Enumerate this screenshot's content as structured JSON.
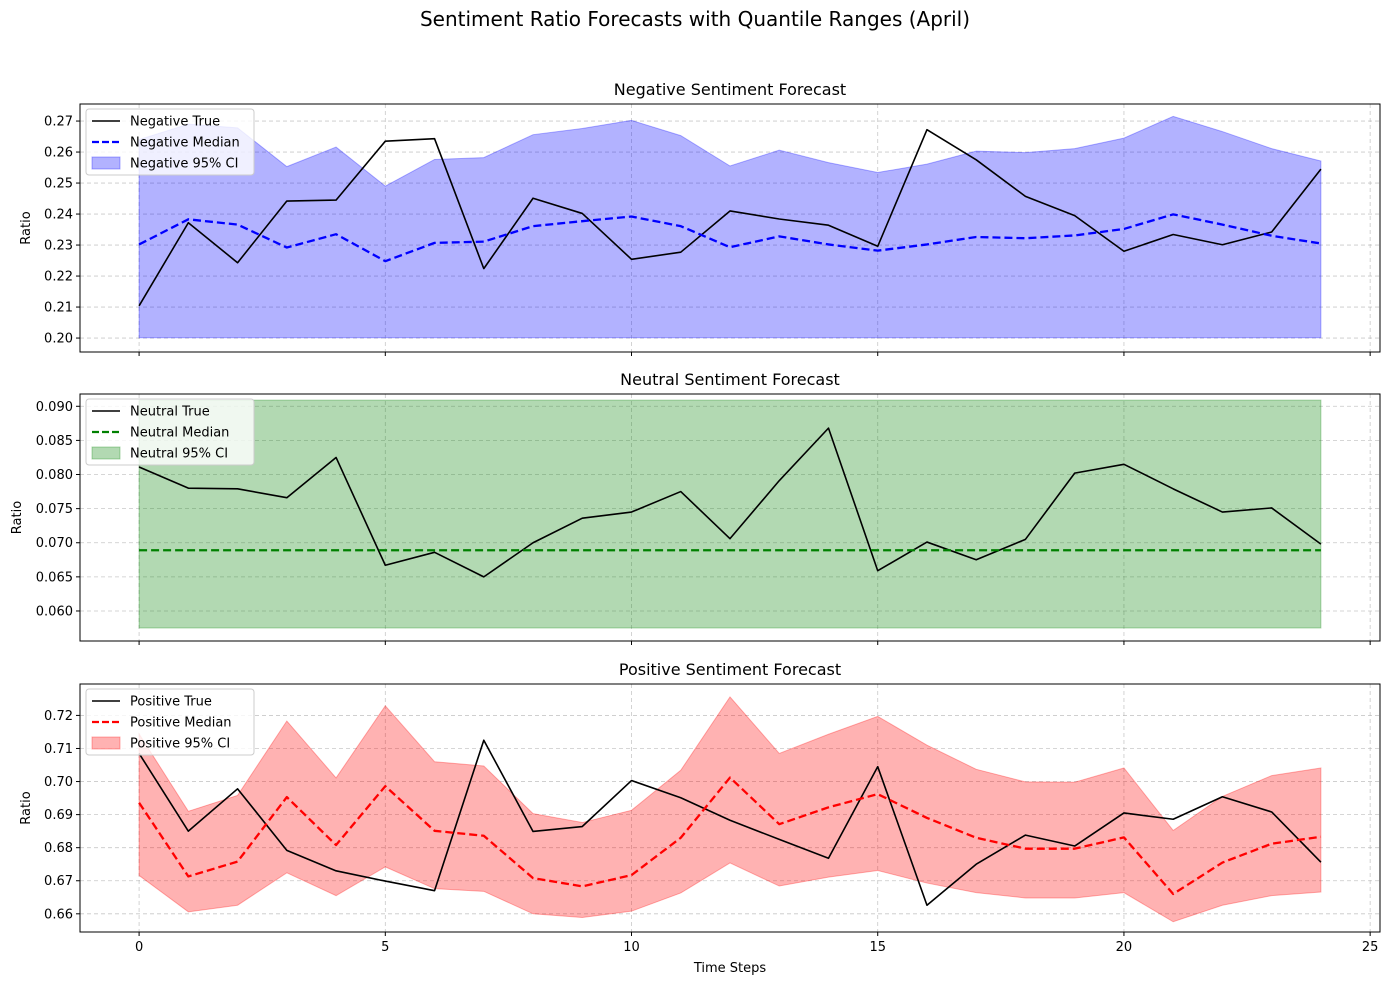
{
  "figure": {
    "title": "Sentiment Ratio Forecasts with Quantile Ranges (April)"
  },
  "chart_data": [
    {
      "type": "line",
      "title": "Negative Sentiment Forecast",
      "xlabel": "",
      "ylabel": "Ratio",
      "xlim": [
        -1.2,
        25.2
      ],
      "ylim": [
        0.1955,
        0.2755
      ],
      "yticks": [
        0.2,
        0.21,
        0.22,
        0.23,
        0.24,
        0.25,
        0.26,
        0.27
      ],
      "ytick_labels": [
        "0.20",
        "0.21",
        "0.22",
        "0.23",
        "0.24",
        "0.25",
        "0.26",
        "0.27"
      ],
      "xticks": [
        0,
        5,
        10,
        15,
        20,
        25
      ],
      "xtick_labels": [],
      "grid": true,
      "legend_position": "top-left",
      "x": [
        0,
        1,
        2,
        3,
        4,
        5,
        6,
        7,
        8,
        9,
        10,
        11,
        12,
        13,
        14,
        15,
        16,
        17,
        18,
        19,
        20,
        21,
        22,
        23,
        24
      ],
      "series": [
        {
          "name": "Negative True",
          "kind": "line",
          "color": "#000000",
          "dashed": false,
          "values": [
            0.2104,
            0.2372,
            0.2243,
            0.2442,
            0.2445,
            0.2635,
            0.2643,
            0.2224,
            0.2451,
            0.2402,
            0.2254,
            0.2277,
            0.241,
            0.2384,
            0.2364,
            0.2296,
            0.2672,
            0.2575,
            0.2457,
            0.2395,
            0.228,
            0.2334,
            0.2301,
            0.2342,
            0.2545
          ]
        },
        {
          "name": "Negative Median",
          "kind": "line",
          "color": "#0000ff",
          "dashed": true,
          "values": [
            0.2302,
            0.2383,
            0.2366,
            0.2292,
            0.2335,
            0.2248,
            0.2307,
            0.2311,
            0.2361,
            0.2377,
            0.2392,
            0.2361,
            0.2293,
            0.2328,
            0.2302,
            0.2282,
            0.2302,
            0.2326,
            0.2322,
            0.2331,
            0.2352,
            0.2399,
            0.2366,
            0.233,
            0.2305
          ]
        },
        {
          "name": "Negative 95% CI",
          "kind": "band",
          "color": "#0000ff",
          "lower": [
            0.2001,
            0.2001,
            0.2001,
            0.2001,
            0.2001,
            0.2001,
            0.2001,
            0.2001,
            0.2001,
            0.2001,
            0.2001,
            0.2001,
            0.2001,
            0.2001,
            0.2001,
            0.2001,
            0.2001,
            0.2001,
            0.2001,
            0.2001,
            0.2001,
            0.2001,
            0.2001,
            0.2001,
            0.2001
          ],
          "upper": [
            0.264,
            0.269,
            0.2678,
            0.2553,
            0.2616,
            0.249,
            0.2576,
            0.2582,
            0.2656,
            0.2676,
            0.2702,
            0.2653,
            0.2555,
            0.2606,
            0.2566,
            0.2534,
            0.2561,
            0.2603,
            0.2598,
            0.2611,
            0.2645,
            0.2715,
            0.2666,
            0.2611,
            0.2571
          ]
        }
      ]
    },
    {
      "type": "line",
      "title": "Neutral Sentiment Forecast",
      "xlabel": "",
      "ylabel": "Ratio",
      "xlim": [
        -1.2,
        25.2
      ],
      "ylim": [
        0.0556,
        0.0918
      ],
      "yticks": [
        0.06,
        0.065,
        0.07,
        0.075,
        0.08,
        0.085,
        0.09
      ],
      "ytick_labels": [
        "0.060",
        "0.065",
        "0.070",
        "0.075",
        "0.080",
        "0.085",
        "0.090"
      ],
      "xticks": [
        0,
        5,
        10,
        15,
        20,
        25
      ],
      "xtick_labels": [],
      "grid": true,
      "legend_position": "top-left",
      "x": [
        0,
        1,
        2,
        3,
        4,
        5,
        6,
        7,
        8,
        9,
        10,
        11,
        12,
        13,
        14,
        15,
        16,
        17,
        18,
        19,
        20,
        21,
        22,
        23,
        24
      ],
      "series": [
        {
          "name": "Neutral True",
          "kind": "line",
          "color": "#000000",
          "dashed": false,
          "values": [
            0.0811,
            0.078,
            0.0779,
            0.0766,
            0.0825,
            0.0667,
            0.0686,
            0.065,
            0.07,
            0.0736,
            0.0745,
            0.0775,
            0.0706,
            0.0791,
            0.0868,
            0.0659,
            0.0701,
            0.0675,
            0.0705,
            0.0802,
            0.0815,
            0.0779,
            0.0745,
            0.0751,
            0.0698
          ]
        },
        {
          "name": "Neutral Median",
          "kind": "line",
          "color": "#008000",
          "dashed": true,
          "values": [
            0.0689,
            0.0689,
            0.0689,
            0.0689,
            0.0689,
            0.0689,
            0.0689,
            0.0689,
            0.0689,
            0.0689,
            0.0689,
            0.0689,
            0.0689,
            0.0689,
            0.0689,
            0.0689,
            0.0689,
            0.0689,
            0.0689,
            0.0689,
            0.0689,
            0.0689,
            0.0689,
            0.0689,
            0.0689
          ]
        },
        {
          "name": "Neutral 95% CI",
          "kind": "band",
          "color": "#008000",
          "lower": [
            0.0575,
            0.0575,
            0.0575,
            0.0575,
            0.0575,
            0.0575,
            0.0575,
            0.0575,
            0.0575,
            0.0575,
            0.0575,
            0.0575,
            0.0575,
            0.0575,
            0.0575,
            0.0575,
            0.0575,
            0.0575,
            0.0575,
            0.0575,
            0.0575,
            0.0575,
            0.0575,
            0.0575,
            0.0575
          ],
          "upper": [
            0.0909,
            0.0909,
            0.0909,
            0.0909,
            0.0909,
            0.0909,
            0.0909,
            0.0909,
            0.0909,
            0.0909,
            0.0909,
            0.0909,
            0.0909,
            0.0909,
            0.0909,
            0.0909,
            0.0909,
            0.0909,
            0.0909,
            0.0909,
            0.0909,
            0.0909,
            0.0909,
            0.0909,
            0.0909
          ]
        }
      ]
    },
    {
      "type": "line",
      "title": "Positive Sentiment Forecast",
      "xlabel": "Time Steps",
      "ylabel": "Ratio",
      "xlim": [
        -1.2,
        25.2
      ],
      "ylim": [
        0.6545,
        0.7295
      ],
      "yticks": [
        0.66,
        0.67,
        0.68,
        0.69,
        0.7,
        0.71,
        0.72
      ],
      "ytick_labels": [
        "0.66",
        "0.67",
        "0.68",
        "0.69",
        "0.70",
        "0.71",
        "0.72"
      ],
      "xticks": [
        0,
        5,
        10,
        15,
        20,
        25
      ],
      "xtick_labels": [
        "0",
        "5",
        "10",
        "15",
        "20",
        "25"
      ],
      "grid": true,
      "legend_position": "top-left",
      "x": [
        0,
        1,
        2,
        3,
        4,
        5,
        6,
        7,
        8,
        9,
        10,
        11,
        12,
        13,
        14,
        15,
        16,
        17,
        18,
        19,
        20,
        21,
        22,
        23,
        24
      ],
      "series": [
        {
          "name": "Positive True",
          "kind": "line",
          "color": "#000000",
          "dashed": false,
          "values": [
            0.7085,
            0.685,
            0.6978,
            0.6792,
            0.673,
            0.6699,
            0.667,
            0.7125,
            0.6849,
            0.6864,
            0.7003,
            0.6951,
            0.6883,
            0.6825,
            0.6768,
            0.7045,
            0.6626,
            0.675,
            0.6838,
            0.6805,
            0.6905,
            0.6886,
            0.6954,
            0.6908,
            0.6756
          ]
        },
        {
          "name": "Positive Median",
          "kind": "line",
          "color": "#ff0000",
          "dashed": true,
          "values": [
            0.6936,
            0.6713,
            0.6758,
            0.6953,
            0.6808,
            0.6986,
            0.6851,
            0.6836,
            0.6708,
            0.6683,
            0.6717,
            0.683,
            0.7012,
            0.6871,
            0.6922,
            0.6962,
            0.689,
            0.683,
            0.6797,
            0.6797,
            0.6831,
            0.666,
            0.6755,
            0.6812,
            0.6833
          ]
        },
        {
          "name": "Positive 95% CI",
          "kind": "band",
          "color": "#ff0000",
          "lower": [
            0.6716,
            0.6606,
            0.6626,
            0.6724,
            0.6655,
            0.6742,
            0.6676,
            0.6668,
            0.66,
            0.6589,
            0.6608,
            0.6663,
            0.6754,
            0.6684,
            0.6711,
            0.6731,
            0.6693,
            0.6664,
            0.6648,
            0.6648,
            0.6664,
            0.6576,
            0.6626,
            0.6655,
            0.6666
          ],
          "upper": [
            0.7144,
            0.691,
            0.6958,
            0.7183,
            0.7011,
            0.7229,
            0.706,
            0.7047,
            0.6903,
            0.6876,
            0.6913,
            0.7034,
            0.7256,
            0.7085,
            0.7143,
            0.7197,
            0.711,
            0.7037,
            0.6999,
            0.6998,
            0.7041,
            0.6852,
            0.6955,
            0.7018,
            0.7041
          ]
        }
      ]
    }
  ]
}
